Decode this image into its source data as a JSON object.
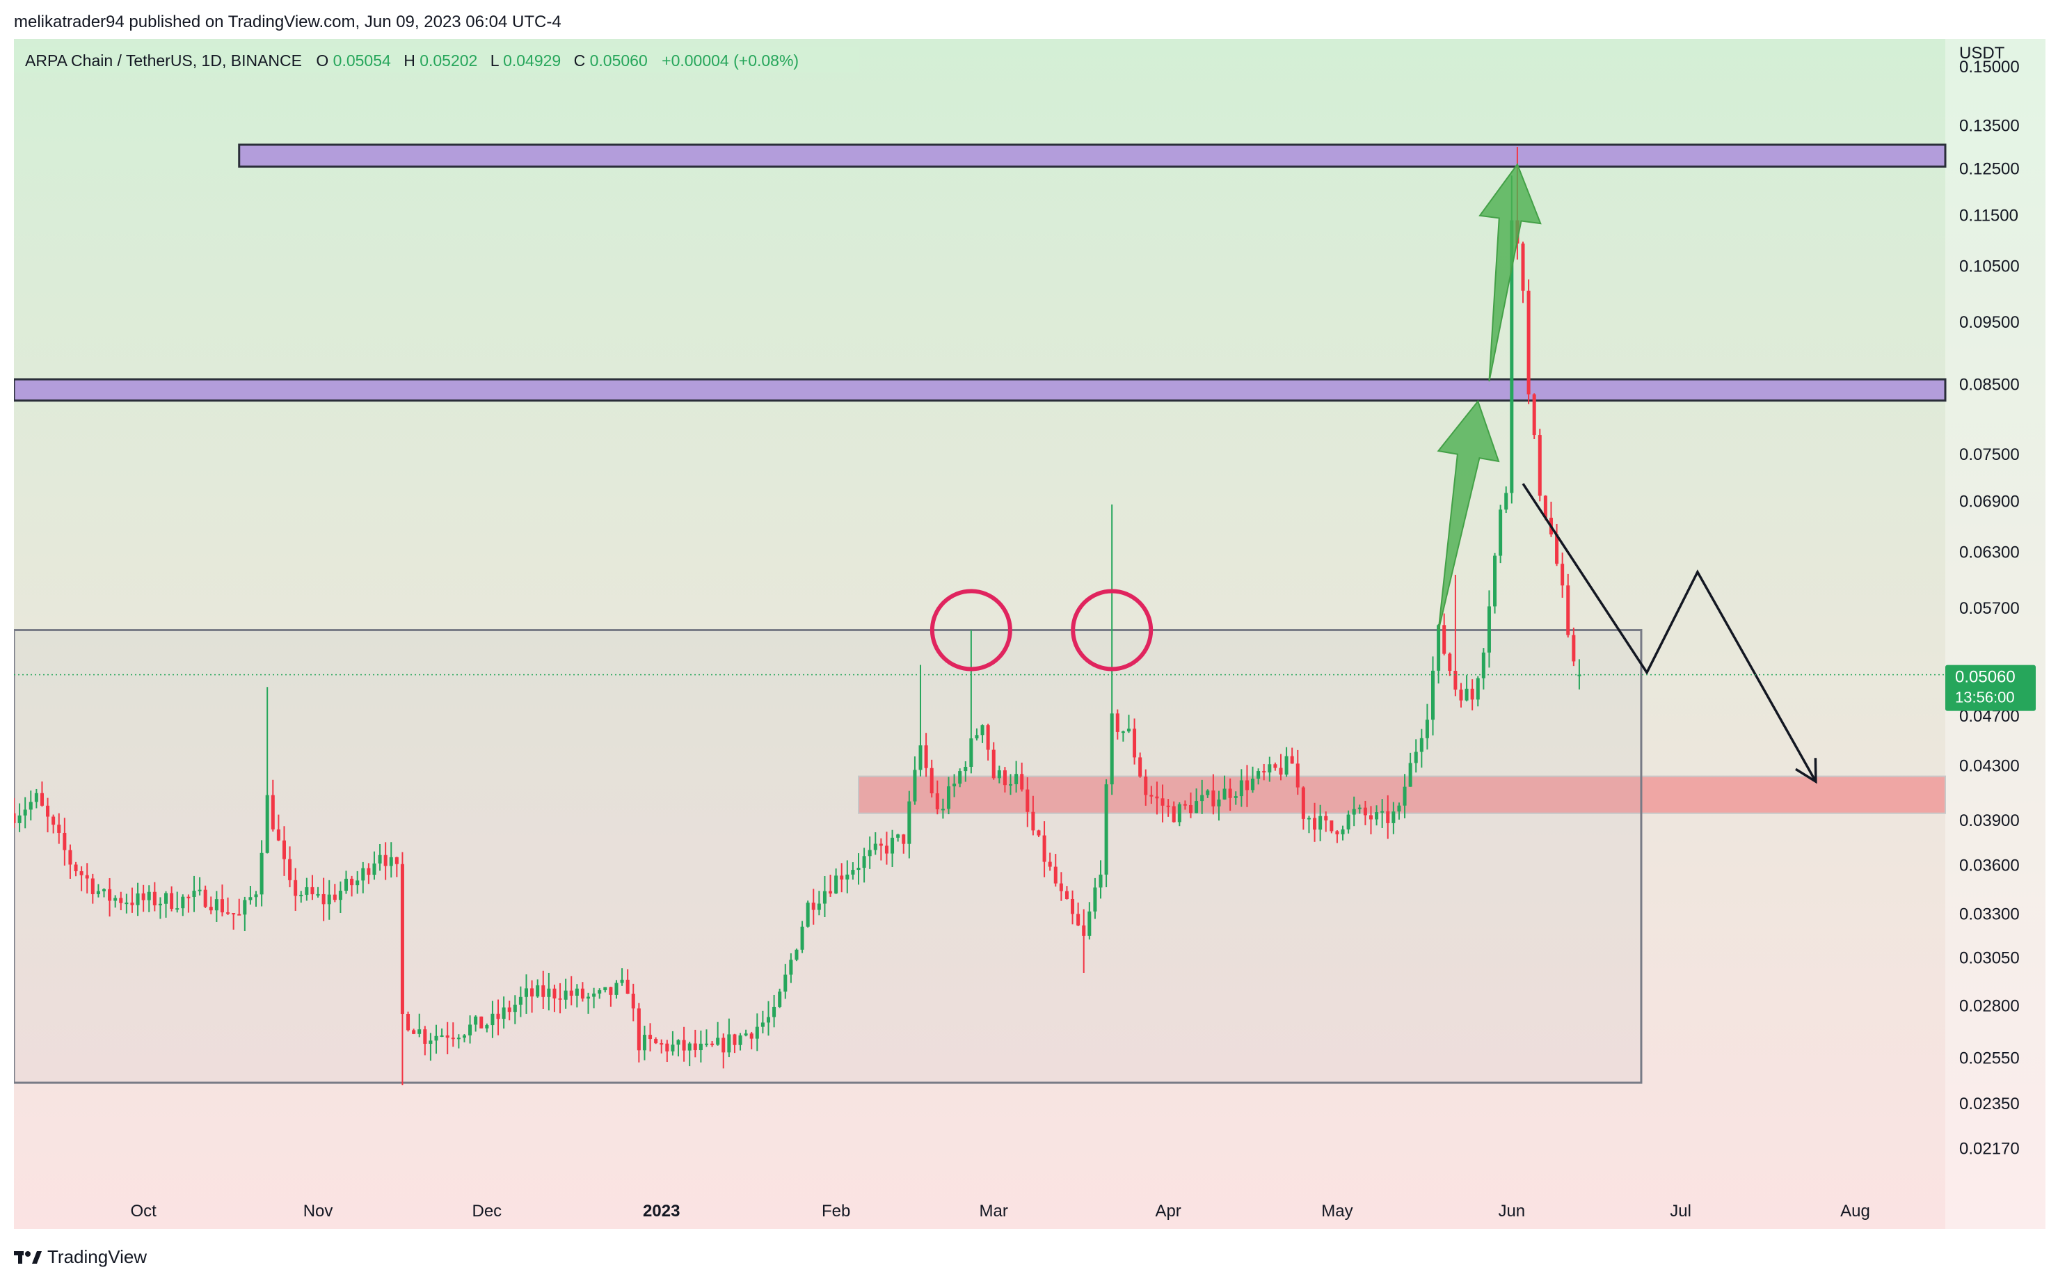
{
  "header": {
    "publisher": "melikatrader94 published on TradingView.com, Jun 09, 2023 06:04 UTC-4"
  },
  "legend": {
    "symbol": "ARPA Chain / TetherUS, 1D, BINANCE",
    "o_label": "O",
    "o_value": "0.05054",
    "h_label": "H",
    "h_value": "0.05202",
    "l_label": "L",
    "l_value": "0.04929",
    "c_label": "C",
    "c_value": "0.05060",
    "change": "+0.00004 (+0.08%)"
  },
  "price_axis": {
    "currency": "USDT",
    "current_price": "0.05060",
    "countdown": "13:56:00"
  },
  "footer": {
    "brand": "TradingView"
  },
  "colors": {
    "up": "#26a65b",
    "down": "#f23645",
    "zone_purple": "#b39ddb",
    "zone_red": "#ef9a9a",
    "circle": "#e0245e",
    "arrow_green": "#4caf50",
    "price_tag": "#26a65b"
  },
  "chart_data": {
    "type": "candlestick",
    "scale": "log",
    "y_ticks": [
      0.15,
      0.135,
      0.125,
      0.115,
      0.105,
      0.095,
      0.085,
      0.075,
      0.069,
      0.063,
      0.057,
      0.047,
      0.043,
      0.039,
      0.036,
      0.033,
      0.0305,
      0.028,
      0.0255,
      0.0235,
      0.0217
    ],
    "y_tick_labels": [
      "0.15000",
      "0.13500",
      "0.12500",
      "0.11500",
      "0.10500",
      "0.09500",
      "0.08500",
      "0.07500",
      "0.06900",
      "0.06300",
      "0.05700",
      "0.04700",
      "0.04300",
      "0.03900",
      "0.03600",
      "0.03300",
      "0.03050",
      "0.02800",
      "0.02550",
      "0.02350",
      "0.02170"
    ],
    "x_labels": [
      {
        "label": "Oct",
        "date": "2022-10-01"
      },
      {
        "label": "Nov",
        "date": "2022-11-01"
      },
      {
        "label": "Dec",
        "date": "2022-12-01"
      },
      {
        "label": "2023",
        "date": "2023-01-01"
      },
      {
        "label": "Feb",
        "date": "2023-02-01"
      },
      {
        "label": "Mar",
        "date": "2023-03-01"
      },
      {
        "label": "Apr",
        "date": "2023-04-01"
      },
      {
        "label": "May",
        "date": "2023-05-01"
      },
      {
        "label": "Jun",
        "date": "2023-06-01"
      },
      {
        "label": "Jul",
        "date": "2023-07-01"
      },
      {
        "label": "Aug",
        "date": "2023-08-01"
      }
    ],
    "x_range": [
      "2022-09-08",
      "2023-08-17"
    ],
    "last": {
      "date": "2023-06-09",
      "open": 0.05054,
      "high": 0.05202,
      "low": 0.04929,
      "close": 0.0506
    },
    "anchors": [
      [
        "2022-09-08",
        0.0395
      ],
      [
        "2022-09-12",
        0.0405
      ],
      [
        "2022-09-18",
        0.0362
      ],
      [
        "2022-09-24",
        0.034
      ],
      [
        "2022-09-30",
        0.0338
      ],
      [
        "2022-10-06",
        0.0338
      ],
      [
        "2022-10-12",
        0.034
      ],
      [
        "2022-10-18",
        0.0328
      ],
      [
        "2022-10-21",
        0.0345
      ],
      [
        "2022-10-23",
        0.0405
      ],
      [
        "2022-10-27",
        0.0345
      ],
      [
        "2022-11-02",
        0.0338
      ],
      [
        "2022-11-08",
        0.035
      ],
      [
        "2022-11-12",
        0.037
      ],
      [
        "2022-11-15",
        0.0355
      ],
      [
        "2022-11-16",
        0.0275
      ],
      [
        "2022-11-20",
        0.0265
      ],
      [
        "2022-11-26",
        0.0268
      ],
      [
        "2022-12-02",
        0.0272
      ],
      [
        "2022-12-08",
        0.0285
      ],
      [
        "2022-12-14",
        0.0287
      ],
      [
        "2022-12-20",
        0.0283
      ],
      [
        "2022-12-26",
        0.029
      ],
      [
        "2022-12-28",
        0.0262
      ],
      [
        "2023-01-03",
        0.026
      ],
      [
        "2023-01-09",
        0.0258
      ],
      [
        "2023-01-15",
        0.0265
      ],
      [
        "2023-01-21",
        0.0275
      ],
      [
        "2023-01-27",
        0.0335
      ],
      [
        "2023-02-02",
        0.0355
      ],
      [
        "2023-02-08",
        0.0368
      ],
      [
        "2023-02-13",
        0.0378
      ],
      [
        "2023-02-16",
        0.0445
      ],
      [
        "2023-02-19",
        0.0395
      ],
      [
        "2023-02-22",
        0.0415
      ],
      [
        "2023-02-24",
        0.0435
      ],
      [
        "2023-02-27",
        0.0468
      ],
      [
        "2023-03-01",
        0.0422
      ],
      [
        "2023-03-05",
        0.042
      ],
      [
        "2023-03-08",
        0.0382
      ],
      [
        "2023-03-13",
        0.034
      ],
      [
        "2023-03-17",
        0.0315
      ],
      [
        "2023-03-20",
        0.036
      ],
      [
        "2023-03-22",
        0.0465
      ],
      [
        "2023-03-25",
        0.0455
      ],
      [
        "2023-03-28",
        0.041
      ],
      [
        "2023-04-02",
        0.0395
      ],
      [
        "2023-04-06",
        0.0402
      ],
      [
        "2023-04-10",
        0.0408
      ],
      [
        "2023-04-14",
        0.0415
      ],
      [
        "2023-04-18",
        0.0422
      ],
      [
        "2023-04-23",
        0.0432
      ],
      [
        "2023-04-25",
        0.0395
      ],
      [
        "2023-04-30",
        0.0383
      ],
      [
        "2023-05-04",
        0.0395
      ],
      [
        "2023-05-09",
        0.039
      ],
      [
        "2023-05-12",
        0.0395
      ],
      [
        "2023-05-13",
        0.0415
      ],
      [
        "2023-05-17",
        0.0475
      ],
      [
        "2023-05-19",
        0.0545
      ],
      [
        "2023-05-22",
        0.0495
      ],
      [
        "2023-05-25",
        0.0485
      ],
      [
        "2023-05-27",
        0.0535
      ],
      [
        "2023-05-30",
        0.0675
      ],
      [
        "2023-05-31",
        0.0705
      ],
      [
        "2023-06-01",
        0.116
      ],
      [
        "2023-06-03",
        0.102
      ],
      [
        "2023-06-04",
        0.083
      ],
      [
        "2023-06-06",
        0.0705
      ],
      [
        "2023-06-08",
        0.065
      ],
      [
        "2023-06-10",
        0.0585
      ],
      [
        "2023-06-11",
        0.0535
      ],
      [
        "2023-06-13",
        0.0506
      ]
    ],
    "spikes": [
      {
        "date": "2022-10-23",
        "high": 0.0495
      },
      {
        "date": "2023-02-16",
        "high": 0.0515
      },
      {
        "date": "2023-02-25",
        "high": 0.0548
      },
      {
        "date": "2023-03-22",
        "high": 0.0686
      },
      {
        "date": "2023-05-22",
        "high": 0.0605
      },
      {
        "date": "2023-06-01",
        "high": 0.1235
      },
      {
        "date": "2023-06-02",
        "high": 0.13
      },
      {
        "date": "2022-11-16",
        "low": 0.0243
      },
      {
        "date": "2023-03-17",
        "low": 0.0297
      }
    ],
    "zones": [
      {
        "kind": "resistance",
        "from": "2022-10-18",
        "to": "2023-08-17",
        "low": 0.1255,
        "high": 0.1305
      },
      {
        "kind": "resistance",
        "from": "2022-09-08",
        "to": "2023-08-17",
        "low": 0.0826,
        "high": 0.0858
      },
      {
        "kind": "support",
        "from": "2023-02-05",
        "to": "2023-08-17",
        "low": 0.0395,
        "high": 0.0422
      },
      {
        "kind": "range",
        "from": "2022-09-08",
        "to": "2023-06-24",
        "low": 0.0244,
        "high": 0.0548
      }
    ],
    "circles": [
      {
        "date": "2023-02-25",
        "price": 0.0548
      },
      {
        "date": "2023-03-22",
        "price": 0.0548
      }
    ],
    "green_arrows": [
      {
        "from_date": "2023-05-19",
        "from_price": 0.0548,
        "to_date": "2023-05-26",
        "to_price": 0.0825
      },
      {
        "from_date": "2023-05-28",
        "from_price": 0.0855,
        "to_date": "2023-06-02",
        "to_price": 0.126
      }
    ],
    "projection": [
      [
        "2023-06-03",
        0.0712
      ],
      [
        "2023-06-25",
        0.0508
      ],
      [
        "2023-07-04",
        0.0608
      ],
      [
        "2023-07-25",
        0.0418
      ]
    ]
  }
}
